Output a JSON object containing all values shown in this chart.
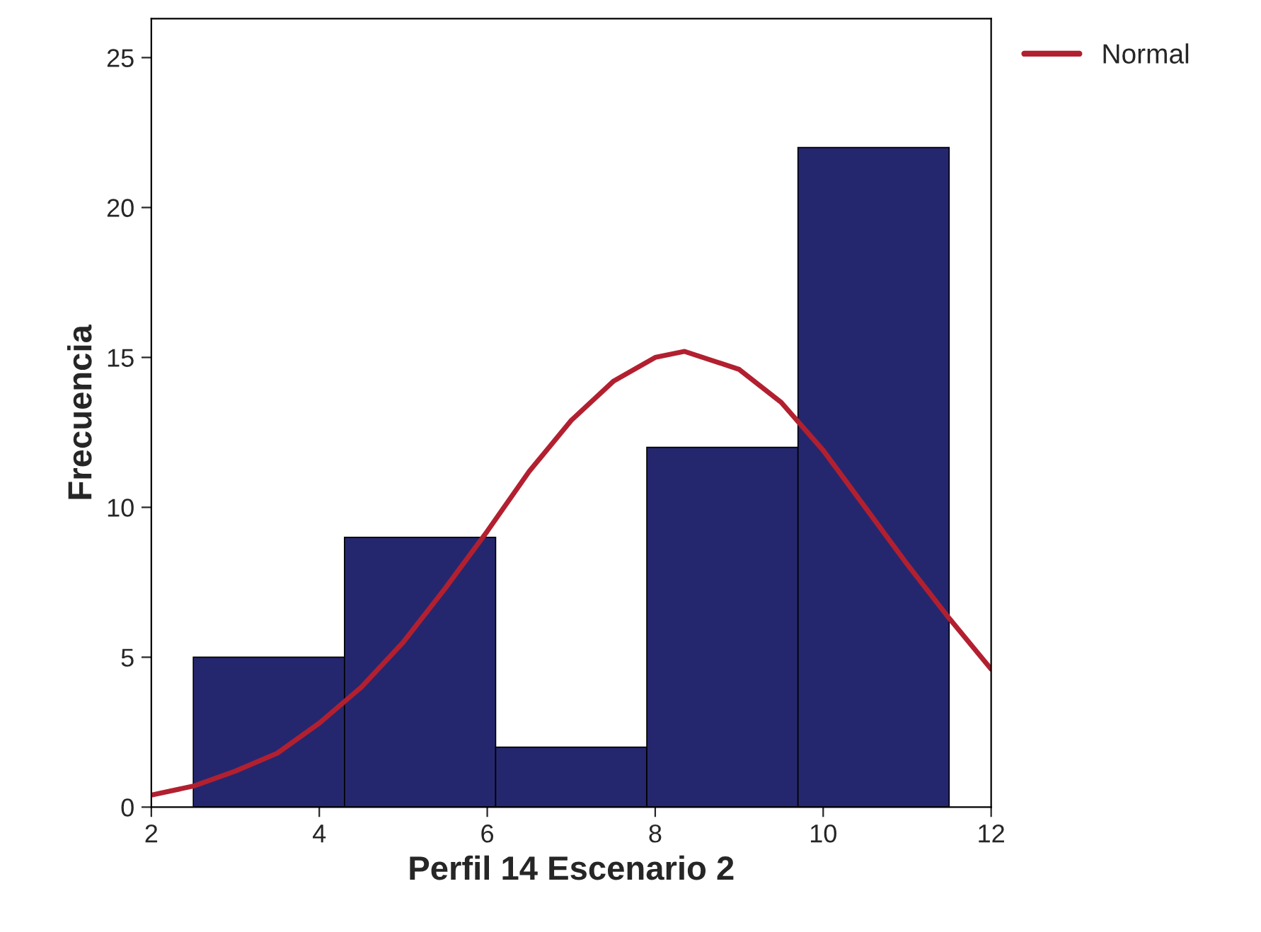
{
  "chart_data": {
    "type": "histogram",
    "xlabel": "Perfil 14 Escenario 2",
    "ylabel": "Frecuencia",
    "bins": [
      2.5,
      4.3,
      6.1,
      7.9,
      9.7,
      11.5
    ],
    "values": [
      5,
      9,
      2,
      12,
      22
    ],
    "color": "#25276e",
    "series": [
      {
        "name": "Normal",
        "type": "line",
        "color": "#b22030",
        "x": [
          2,
          2.5,
          3,
          3.5,
          4,
          4.5,
          5,
          5.5,
          6,
          6.5,
          7,
          7.5,
          8,
          8.35,
          9,
          9.5,
          10,
          10.5,
          11,
          11.5,
          12
        ],
        "values": [
          0.4,
          0.7,
          1.2,
          1.8,
          2.8,
          4.0,
          5.5,
          7.3,
          9.2,
          11.2,
          12.9,
          14.2,
          15.0,
          15.2,
          14.6,
          13.5,
          11.9,
          10.0,
          8.1,
          6.3,
          4.6
        ]
      }
    ],
    "xlim": [
      2,
      12
    ],
    "xticks": [
      2,
      4,
      6,
      8,
      10,
      12
    ],
    "ylim": [
      0,
      26.3
    ],
    "yticks": [
      0,
      5,
      10,
      15,
      20,
      25
    ],
    "grid": false,
    "legend": "top right"
  }
}
